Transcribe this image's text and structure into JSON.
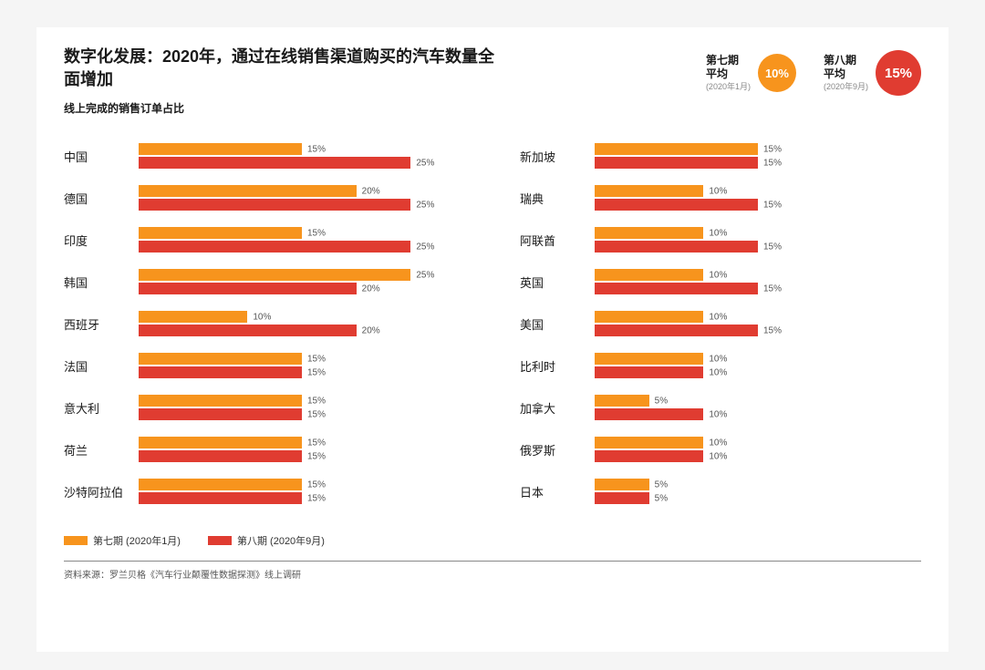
{
  "title": "数字化发展：2020年，通过在线销售渠道购买的汽车数量全面增加",
  "subtitle": "线上完成的销售订单占比",
  "colors": {
    "series1": "#f7941d",
    "series2": "#e03c31",
    "barMaxPct": 30,
    "background": "#ffffff"
  },
  "averages": [
    {
      "label": "第七期\n平均",
      "sub": "(2020年1月)",
      "value": "10%",
      "color": "#f7941d",
      "big": false
    },
    {
      "label": "第八期\n平均",
      "sub": "(2020年9月)",
      "value": "15%",
      "color": "#e03c31",
      "big": true
    }
  ],
  "legend": [
    {
      "swatch": "#f7941d",
      "label": "第七期 (2020年1月)"
    },
    {
      "swatch": "#e03c31",
      "label": "第八期 (2020年9月)"
    }
  ],
  "columns": [
    [
      {
        "name": "中国",
        "v1": 15,
        "v2": 25
      },
      {
        "name": "德国",
        "v1": 20,
        "v2": 25
      },
      {
        "name": "印度",
        "v1": 15,
        "v2": 25
      },
      {
        "name": "韩国",
        "v1": 25,
        "v2": 20
      },
      {
        "name": "西班牙",
        "v1": 10,
        "v2": 20
      },
      {
        "name": "法国",
        "v1": 15,
        "v2": 15
      },
      {
        "name": "意大利",
        "v1": 15,
        "v2": 15
      },
      {
        "name": "荷兰",
        "v1": 15,
        "v2": 15
      },
      {
        "name": "沙特阿拉伯",
        "v1": 15,
        "v2": 15
      }
    ],
    [
      {
        "name": "新加坡",
        "v1": 15,
        "v2": 15
      },
      {
        "name": "瑞典",
        "v1": 10,
        "v2": 15
      },
      {
        "name": "阿联酋",
        "v1": 10,
        "v2": 15
      },
      {
        "name": "英国",
        "v1": 10,
        "v2": 15
      },
      {
        "name": "美国",
        "v1": 10,
        "v2": 15
      },
      {
        "name": "比利时",
        "v1": 10,
        "v2": 10
      },
      {
        "name": "加拿大",
        "v1": 5,
        "v2": 10
      },
      {
        "name": "俄罗斯",
        "v1": 10,
        "v2": 10
      },
      {
        "name": "日本",
        "v1": 5,
        "v2": 5
      }
    ]
  ],
  "source": "资料来源：罗兰贝格《汽车行业颠覆性数据探测》线上调研"
}
